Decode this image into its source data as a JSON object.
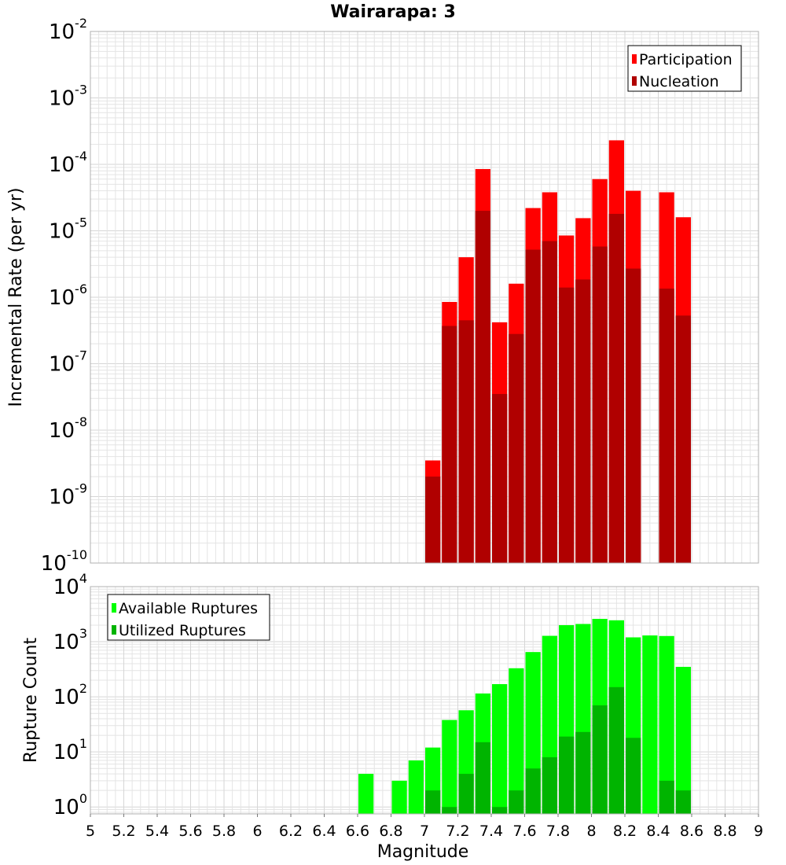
{
  "title": "Wairarapa: 3",
  "colors": {
    "participation": "#ff0000",
    "nucleation": "#b00000",
    "available": "#00ff00",
    "utilized": "#00b400",
    "grid": "#e4e4e4"
  },
  "chart_data": [
    {
      "type": "bar",
      "scale": "log",
      "ylabel": "Incremental Rate (per yr)",
      "ylim": [
        1e-10,
        0.01
      ],
      "y_tick_exponents": [
        "-2",
        "-3",
        "-4",
        "-5",
        "-6",
        "-7",
        "-8",
        "-9",
        "-10"
      ],
      "legend": [
        "Participation",
        "Nucleation"
      ],
      "legend_position": "top-right",
      "grid": true,
      "x": [
        7.05,
        7.15,
        7.25,
        7.35,
        7.45,
        7.55,
        7.65,
        7.75,
        7.85,
        7.95,
        8.05,
        8.15,
        8.25,
        8.45,
        8.55
      ],
      "series": [
        {
          "name": "Participation",
          "values": [
            3.5e-09,
            8.5e-07,
            4e-06,
            8.5e-05,
            4.2e-07,
            1.6e-06,
            2.2e-05,
            3.8e-05,
            8.5e-06,
            1.55e-05,
            6e-05,
            0.00023,
            4e-05,
            3.8e-05,
            1.6e-05
          ]
        },
        {
          "name": "Nucleation",
          "values": [
            2e-09,
            3.7e-07,
            4.5e-07,
            2e-05,
            3.5e-08,
            2.8e-07,
            5.2e-06,
            7e-06,
            1.4e-06,
            1.85e-06,
            5.8e-06,
            1.8e-05,
            2.7e-06,
            1.35e-06,
            5.3e-07
          ]
        }
      ]
    },
    {
      "type": "bar",
      "scale": "log",
      "xlabel": "Magnitude",
      "ylabel": "Rupture Count",
      "ylim": [
        0.75,
        10000
      ],
      "y_tick_exponents": [
        "0",
        "1",
        "2",
        "3",
        "4"
      ],
      "xlim": [
        5,
        9
      ],
      "x_ticks": [
        "5",
        "5.2",
        "5.4",
        "5.6",
        "5.8",
        "6",
        "6.2",
        "6.4",
        "6.6",
        "6.8",
        "7",
        "7.2",
        "7.4",
        "7.6",
        "7.8",
        "8",
        "8.2",
        "8.4",
        "8.6",
        "8.8",
        "9"
      ],
      "legend": [
        "Available Ruptures",
        "Utilized Ruptures"
      ],
      "legend_position": "top-left",
      "grid": true,
      "x": [
        6.65,
        6.85,
        6.95,
        7.05,
        7.15,
        7.25,
        7.35,
        7.45,
        7.55,
        7.65,
        7.75,
        7.85,
        7.95,
        8.05,
        8.15,
        8.25,
        8.35,
        8.45,
        8.55
      ],
      "series": [
        {
          "name": "Available Ruptures",
          "values": [
            4,
            3,
            7,
            12,
            38,
            57,
            115,
            170,
            330,
            650,
            1280,
            2000,
            2100,
            2600,
            2450,
            1200,
            1300,
            1270,
            350
          ]
        },
        {
          "name": "Utilized Ruptures",
          "values": [
            null,
            null,
            null,
            2,
            1,
            4,
            15,
            1,
            2,
            5,
            8,
            19,
            23,
            70,
            150,
            18,
            null,
            3,
            2
          ]
        }
      ]
    }
  ]
}
